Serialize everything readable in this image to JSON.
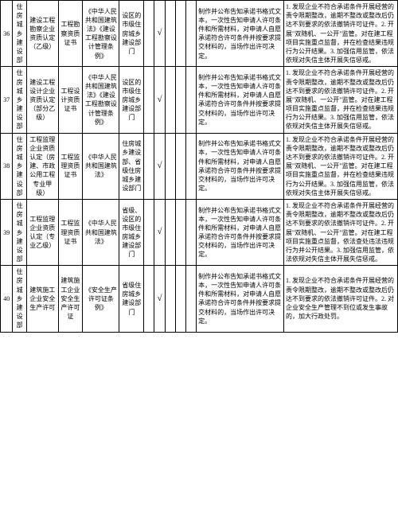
{
  "chk": "√",
  "rows": [
    {
      "num": "36",
      "dept": "住房城乡建设部",
      "item": "建设工程勘察企业资质认定（乙级）",
      "cert": "工程勘察资质证书",
      "law": "《中华人民共和国建筑法》《建设工程勘察设计管理条例》",
      "impl": "设区的市级住房城乡建设部门",
      "c1": "",
      "c2": "√",
      "c3": "",
      "c4": "",
      "c5": "",
      "req": "制作并公布告知承诺书格式文本，一次性告知申请人许可条件和所需材料，对申请人自愿承诺符合许可条件并按要求提交材料的，当场作出许可决定。",
      "sup": "1. 发现企业不符合承诺条件开展经营的责令限期整改，逾期不整改或整改后仍达不到要求的依法撤销许可证件。2. 开展\"双随机、一公开\"监管。对在建工程项目实施重点监督，并在检查结果违规行为公开结果。3. 加强信用监管，依法依规对失信主体开展失信惩戒。"
    },
    {
      "num": "37",
      "dept": "住房城乡建设部",
      "item": "建设工程设计企业资质认定（部分乙级）",
      "cert": "工程设计资质证书",
      "law": "《中华人民共和国建筑法》《建设工程勘察设计管理条例》",
      "impl": "设区的市级住房城乡建设部门",
      "c1": "",
      "c2": "√",
      "c3": "",
      "c4": "",
      "c5": "",
      "req": "制作并公布告知承诺书格式文本，一次性告知申请人许可条件和所需材料，对申请人自愿承诺符合许可条件并按要求提交材料的，当场作出许可决定。",
      "sup": "1. 发现企业不符合承诺条件开展经营的责令限期整改，逾期不整改或整改后仍达不到要求的依法撤销许可证件。2. 开展\"双随机、一公开\"监管。对在建工程项目实施重点监督，并在检查结果违规行为公开结果。3. 加强信用监管，依法依规对失信主体开展失信惩戒。"
    },
    {
      "num": "38",
      "dept": "住房城乡建设部",
      "item": "工程监理企业资质认定（房建、市政公用工程专业甲级）",
      "cert": "工程监理资质证书",
      "law": "《中华人民共和国建筑法》",
      "impl": "住房城乡建设部、省级住房城乡建设部门",
      "c1": "",
      "c2": "√",
      "c3": "",
      "c4": "",
      "c5": "",
      "req": "制作并公布告知承诺书格式文本，一次性告知申请人许可条件和所需材料，对申请人自愿承诺符合许可条件并按要求提交材料的，当场作出许可决定。",
      "sup": "1. 发现企业不符合承诺条件开展经营的责令限期整改，逾期不整改或整改后仍达不到要求的依法撤销许可证件。2. 开展\"双随机、一公开\"监管。对在建工程项目实施重点监督，并在检查结果违规行为公开结果。3. 加强信用监管，依法依规对失信主体开展失信惩戒。"
    },
    {
      "num": "39",
      "dept": "住房城乡建设部",
      "item": "工程监理企业资质认定（专业乙级）",
      "cert": "工程监理资质证书",
      "law": "《中华人民共和国建筑法》",
      "impl": "省级、设区的市级住房城乡建设部门",
      "c1": "",
      "c2": "√",
      "c3": "",
      "c4": "",
      "c5": "",
      "req": "制作并公布告知承诺书格式文本，一次性告知申请人许可条件和所需材料，对申请人自愿承诺符合许可条件并按要求提交材料的，当场作出许可决定。",
      "sup": "1. 发现企业不符合承诺条件开展经营的责令限期整改，逾期不整改或整改后仍达不到要求的依法撤销许可证件。2. 开展\"双随机、一公开\"监管。对在建工程项目实施重点监督，依法查处违法违规行为并公开结果。3. 加强信用监管，依法依规对失信主体开展失信惩戒。"
    },
    {
      "num": "40",
      "dept": "住房城乡建设部",
      "item": "建筑施工企业安全生产许可",
      "cert": "建筑施工企业安全生产许可证",
      "law": "《安全生产许可证条例》",
      "impl": "省级住房城乡建设部门",
      "c1": "",
      "c2": "√",
      "c3": "",
      "c4": "",
      "c5": "",
      "req": "制作并公布告知承诺书格式文本，一次性告知申请人许可条件和所需材料，对申请人自愿承诺符合许可条件并按要求提交材料的，当场作出许可决定。",
      "sup": "1. 发现企业不符合承诺条件开展经营的责令限期整改，逾期不整改或整改后仍达不到要求的依法撤销许可证件。2. 对企业安全生产管理不到位或发生事故的，加大行政处罚。"
    }
  ]
}
